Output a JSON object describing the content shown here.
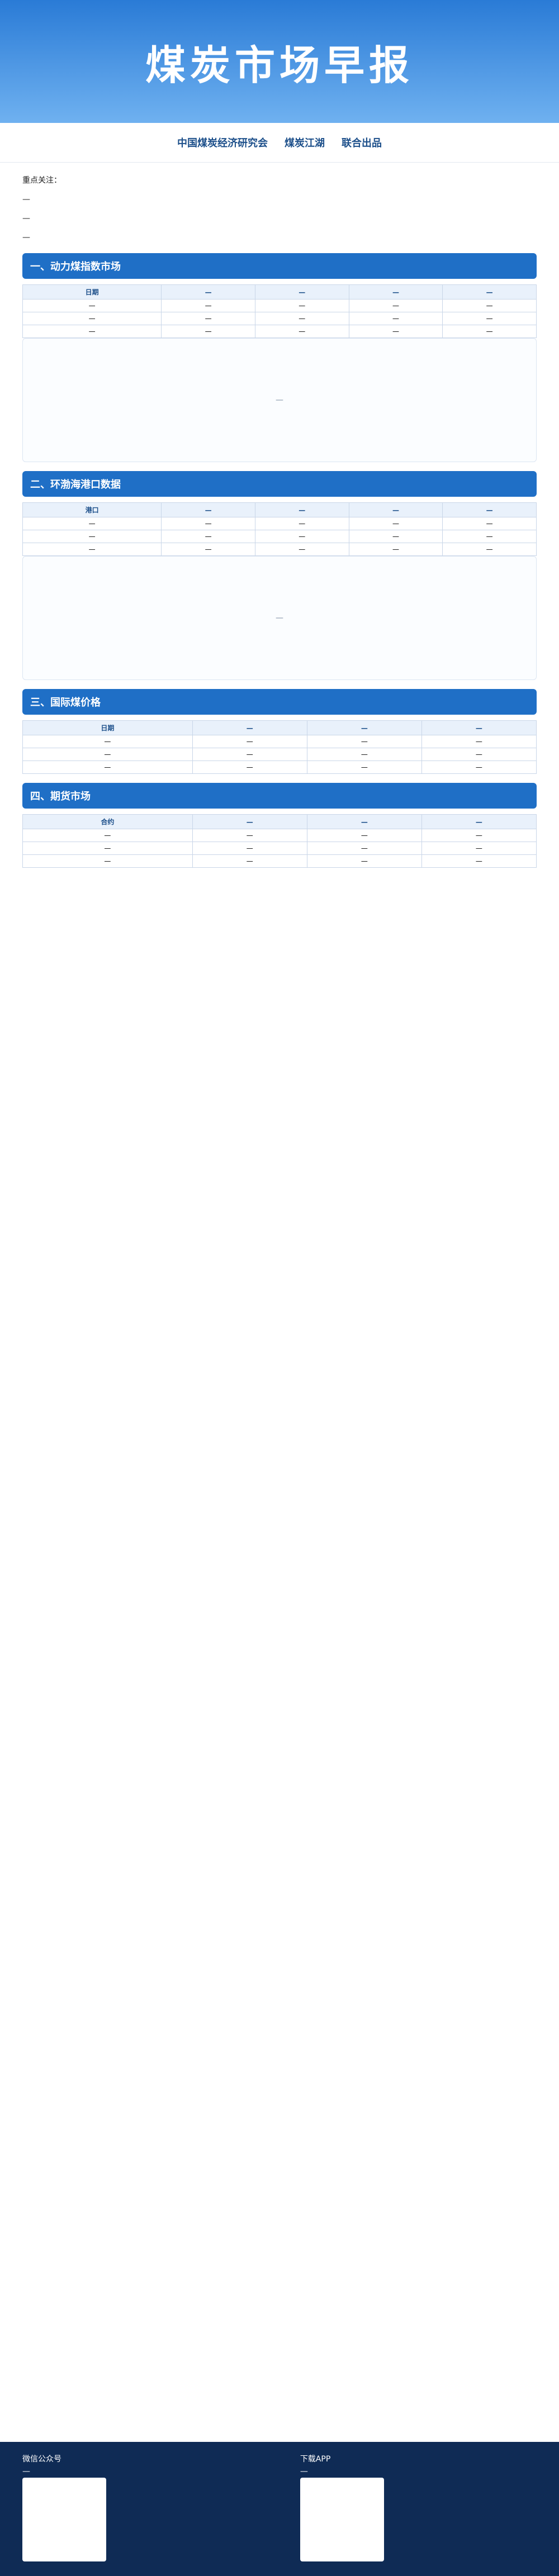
{
  "banner": {
    "title": "煤炭市场早报"
  },
  "orgs": {
    "left": "中国煤炭经济研究会",
    "right": "煤炭江湖",
    "right_suffix": "联合出品"
  },
  "summary": {
    "heading": "重点关注：",
    "paragraphs": [
      "—",
      "—",
      "—"
    ]
  },
  "sections": [
    {
      "title": "一、动力煤指数市场",
      "table_headers": [
        "日期",
        "—",
        "—",
        "—",
        "—"
      ],
      "rows": [
        [
          "—",
          "—",
          "—",
          "—",
          "—"
        ],
        [
          "—",
          "—",
          "—",
          "—",
          "—"
        ],
        [
          "—",
          "—",
          "—",
          "—",
          "—"
        ]
      ]
    },
    {
      "title": "二、环渤海港口数据",
      "table_headers": [
        "港口",
        "—",
        "—",
        "—",
        "—"
      ],
      "rows": [
        [
          "—",
          "—",
          "—",
          "—",
          "—"
        ],
        [
          "—",
          "—",
          "—",
          "—",
          "—"
        ],
        [
          "—",
          "—",
          "—",
          "—",
          "—"
        ]
      ]
    },
    {
      "title": "三、国际煤价格",
      "table_headers": [
        "日期",
        "—",
        "—",
        "—"
      ],
      "rows": [
        [
          "—",
          "—",
          "—",
          "—"
        ],
        [
          "—",
          "—",
          "—",
          "—"
        ],
        [
          "—",
          "—",
          "—",
          "—"
        ]
      ]
    },
    {
      "title": "四、期货市场",
      "table_headers": [
        "合约",
        "—",
        "—",
        "—"
      ],
      "rows": [
        [
          "—",
          "—",
          "—",
          "—"
        ],
        [
          "—",
          "—",
          "—",
          "—"
        ],
        [
          "—",
          "—",
          "—",
          "—"
        ]
      ]
    }
  ],
  "footer": {
    "left_title": "微信公众号",
    "left_text": "—",
    "right_title": "下载APP",
    "right_text": "—"
  }
}
